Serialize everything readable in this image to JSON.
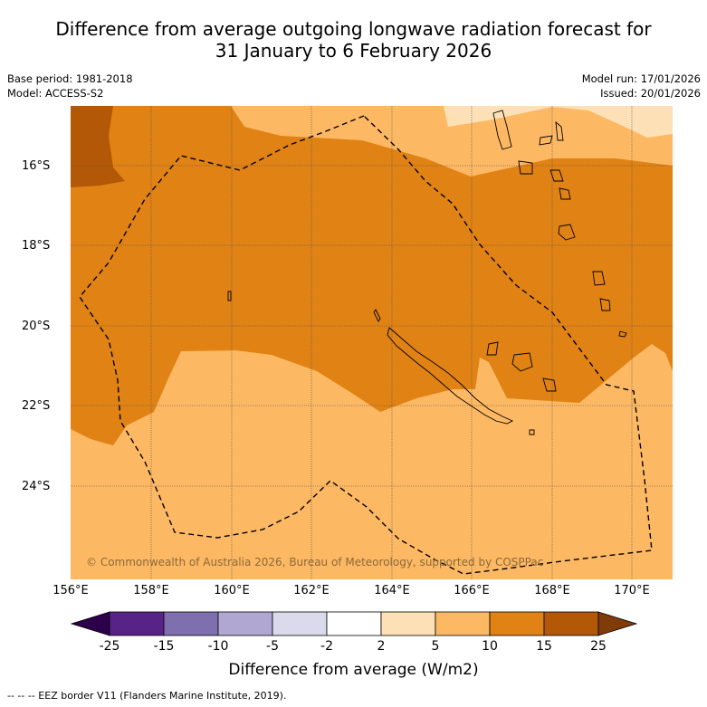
{
  "title_line1": "Difference from average outgoing longwave radiation forecast for",
  "title_line2": "31 January to 6 February 2026",
  "base_period": "Base period: 1981-2018",
  "model": "Model: ACCESS-S2",
  "model_run": "Model run: 17/01/2026",
  "issued": "Issued: 20/01/2026",
  "copyright": "© Commonwealth of Australia 2026, Bureau of Meteorology, supported by COSPPac",
  "lon_labels": [
    "156°E",
    "158°E",
    "160°E",
    "162°E",
    "164°E",
    "166°E",
    "168°E",
    "170°E"
  ],
  "lat_labels": [
    "16°S",
    "18°S",
    "20°S",
    "22°S",
    "24°S"
  ],
  "colorbar": {
    "labels": [
      "-25",
      "-15",
      "-10",
      "-5",
      "-2",
      "2",
      "5",
      "10",
      "15",
      "25"
    ],
    "colors": [
      "#582387",
      "#7f6fae",
      "#b0a8d2",
      "#dadaec",
      "#ffffff",
      "#fee0b6",
      "#fdb863",
      "#e08214",
      "#b35806"
    ],
    "under_color": "#2d004b",
    "over_color": "#7f3b08",
    "title": "Difference from average (W/m2)"
  },
  "footnote": "--  --  -- EEZ border V11 (Flanders Marine Institute, 2019)."
}
